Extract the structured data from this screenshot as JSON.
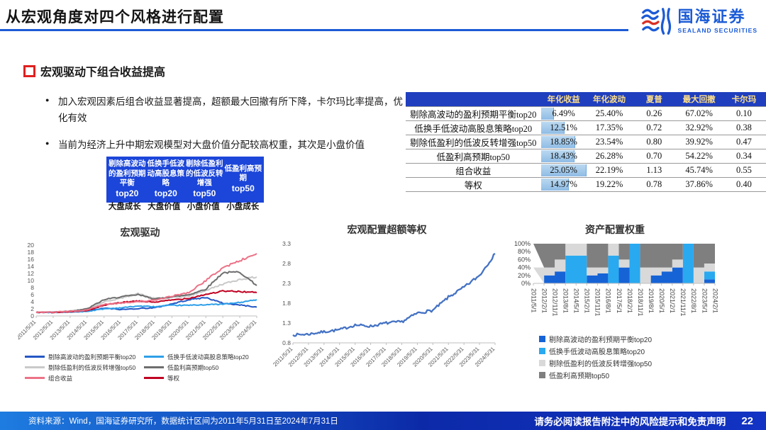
{
  "header": {
    "title": "从宏观角度对四个风格进行配置",
    "logo_cn": "国海证券",
    "logo_en": "SEALAND SECURITIES"
  },
  "section": {
    "title": "宏观驱动下组合收益提高",
    "bullets": [
      "加入宏观因素后组合收益显著提高，超额最大回撤有所下降，卡尔玛比率提高，优化有效",
      "当前为经济上升中期宏观模型对大盘价值分配较高权重，其次是小盘价值"
    ]
  },
  "style_box": {
    "cells": [
      {
        "text": "剔除高波动的盈利预期平衡",
        "tag": "top20"
      },
      {
        "text": "低换手低波动高股息策略",
        "tag": "top20"
      },
      {
        "text": "剔除低盈利的低波反转增强",
        "tag": "top50"
      },
      {
        "text": "低盈利高预期",
        "tag": "top50"
      }
    ],
    "footnotes": [
      "大盘成长",
      "大盘价值",
      "小盘价值",
      "小盘成长"
    ]
  },
  "table": {
    "headers": [
      "",
      "年化收益",
      "年化波动",
      "夏普",
      "最大回撤",
      "卡尔玛"
    ],
    "bar_max": 25.05,
    "rows": [
      {
        "label": "剔除高波动的盈利预期平衡top20",
        "values": [
          "6.49%",
          "25.40%",
          "0.26",
          "67.02%",
          "0.10"
        ]
      },
      {
        "label": "低换手低波动高股息策略top20",
        "values": [
          "12.51%",
          "17.35%",
          "0.72",
          "32.92%",
          "0.38"
        ]
      },
      {
        "label": "剔除低盈利的低波反转增强top50",
        "values": [
          "18.85%",
          "23.54%",
          "0.80",
          "39.92%",
          "0.47"
        ]
      },
      {
        "label": "低盈利高预期top50",
        "values": [
          "18.43%",
          "26.28%",
          "0.70",
          "54.22%",
          "0.34"
        ]
      },
      {
        "label": "组合收益",
        "values": [
          "25.05%",
          "22.19%",
          "1.13",
          "45.74%",
          "0.55"
        ]
      },
      {
        "label": "等权",
        "values": [
          "14.97%",
          "19.22%",
          "0.78",
          "37.86%",
          "0.40"
        ]
      }
    ]
  },
  "chart_data": [
    {
      "type": "line",
      "title": "宏观驱动",
      "x": [
        "2011/5/31",
        "2012/5/31",
        "2013/5/31",
        "2014/5/31",
        "2015/5/31",
        "2016/5/31",
        "2017/5/31",
        "2018/5/31",
        "2019/5/31",
        "2020/5/31",
        "2021/5/31",
        "2022/5/31",
        "2023/5/31",
        "2024/5/31"
      ],
      "ylim": [
        0,
        20
      ],
      "yticks": [
        0,
        2,
        4,
        6,
        8,
        10,
        12,
        14,
        16,
        18,
        20
      ],
      "legend_position": "bottom",
      "series": [
        {
          "name": "剔除高波动的盈利预期平衡top20",
          "color": "#2457C5",
          "values": [
            1,
            1,
            1.1,
            1.4,
            2.2,
            1.8,
            2.1,
            2.3,
            3.4,
            4.6,
            5.2,
            3.6,
            3.1,
            2.5
          ]
        },
        {
          "name": "低换手低波动高股息策略top20",
          "color": "#2D9FE8",
          "values": [
            1,
            1,
            1.1,
            1.3,
            2,
            2.3,
            2.8,
            2.6,
            3,
            3,
            3.2,
            3.3,
            3.8,
            4.6
          ]
        },
        {
          "name": "剔除低盈利的低波反转增强top50",
          "color": "#C9C9C9",
          "values": [
            1,
            1.05,
            1.3,
            1.8,
            4,
            5,
            6.3,
            4.9,
            5.2,
            5.6,
            7.2,
            9,
            10.3,
            11
          ]
        },
        {
          "name": "低盈利高预期top50",
          "color": "#6E6E6E",
          "values": [
            1,
            1.1,
            1.4,
            2,
            4.6,
            5.4,
            6,
            4.8,
            5.4,
            6,
            7.6,
            12.2,
            12.4,
            8.6
          ]
        },
        {
          "name": "组合收益",
          "color": "#EC7287",
          "values": [
            1,
            1.1,
            1.3,
            1.7,
            3.3,
            3.6,
            4.1,
            4.4,
            5.6,
            6.6,
            10,
            13.6,
            15.6,
            17.6
          ]
        },
        {
          "name": "等权",
          "color": "#C00021",
          "values": [
            1,
            1.05,
            1.2,
            1.5,
            3,
            3.8,
            4.2,
            3.9,
            4.5,
            5,
            6.1,
            7,
            6.9,
            6.6
          ]
        }
      ]
    },
    {
      "type": "line",
      "title": "宏观配置超额等权",
      "x": [
        "2011/5/31",
        "2012/5/31",
        "2013/5/31",
        "2014/5/31",
        "2015/5/31",
        "2016/5/31",
        "2017/5/31",
        "2018/5/31",
        "2019/5/31",
        "2020/5/31",
        "2021/5/31",
        "2022/5/31",
        "2023/5/31",
        "2024/5/31"
      ],
      "ylim": [
        0.8,
        3.3
      ],
      "yticks": [
        0.8,
        1.3,
        1.8,
        2.3,
        2.8,
        3.3
      ],
      "legend_position": "none",
      "series": [
        {
          "name": "宏观配置超额等权",
          "color": "#4472C4",
          "values": [
            1,
            1.02,
            1.08,
            1.13,
            1.25,
            1.22,
            1.3,
            1.33,
            1.55,
            1.62,
            1.95,
            2.2,
            2.5,
            3.05
          ]
        }
      ]
    },
    {
      "type": "area",
      "title": "资产配置权重",
      "stacked": true,
      "x": [
        "2011/5/1",
        "2012/2/1",
        "2012/11/1",
        "2013/8/1",
        "2014/5/1",
        "2015/2/1",
        "2015/11/1",
        "2016/8/1",
        "2017/5/1",
        "2018/2/1",
        "2018/11/1",
        "2019/8/1",
        "2020/5/1",
        "2021/2/1",
        "2021/11/1",
        "2022/8/1",
        "2023/5/1",
        "2024/2/1"
      ],
      "ylim": [
        0,
        100
      ],
      "yticks": [
        0,
        20,
        40,
        60,
        80,
        100
      ],
      "ytick_suffix": "%",
      "legend_position": "bottom",
      "series": [
        {
          "name": "剔除高波动的盈利预期平衡top20",
          "color": "#1663D6",
          "values": [
            0,
            20,
            30,
            0,
            0,
            20,
            25,
            0,
            40,
            0,
            0,
            20,
            30,
            40,
            0,
            0,
            10,
            0
          ]
        },
        {
          "name": "低换手低波动高股息策略top20",
          "color": "#29A9F0",
          "values": [
            0,
            0,
            0,
            70,
            70,
            0,
            0,
            70,
            0,
            100,
            0,
            0,
            0,
            0,
            100,
            0,
            20,
            70
          ]
        },
        {
          "name": "剔除低盈利的低波反转增强top50",
          "color": "#D9D9D9",
          "values": [
            40,
            20,
            30,
            30,
            30,
            20,
            15,
            30,
            20,
            0,
            40,
            20,
            10,
            20,
            0,
            40,
            20,
            30
          ]
        },
        {
          "name": "低盈利高预期top50",
          "color": "#7F7F7F",
          "values": [
            60,
            60,
            40,
            0,
            0,
            60,
            60,
            0,
            40,
            0,
            60,
            60,
            60,
            40,
            0,
            60,
            50,
            0
          ]
        }
      ]
    }
  ],
  "footer": {
    "source": "资料来源：Wind，国海证券研究所，数据统计区间为2011年5月31日至2024年7月31日",
    "disclaimer": "请务必阅读报告附注中的风险提示和免责声明",
    "page": "22"
  }
}
